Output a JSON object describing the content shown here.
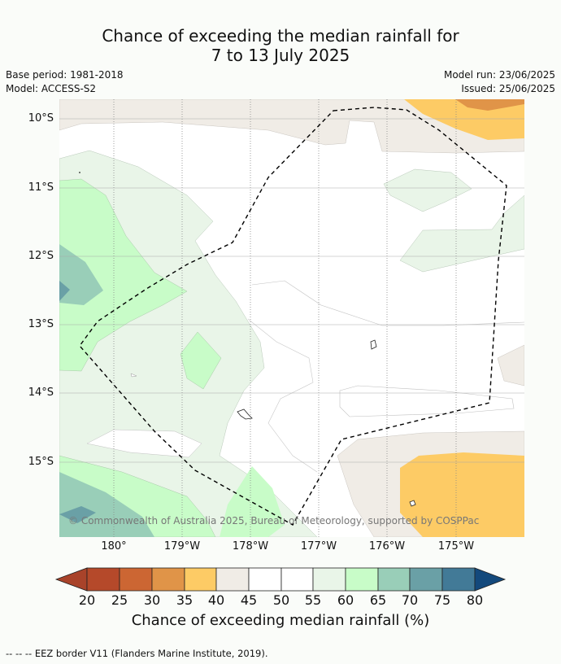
{
  "title": {
    "line1": "Chance of exceeding the median rainfall for",
    "line2": "7 to 13 July 2025"
  },
  "info": {
    "base_period": "Base period: 1981-2018",
    "model": "Model: ACCESS-S2",
    "model_run": "Model run: 23/06/2025",
    "issued": "Issued: 25/06/2025"
  },
  "map": {
    "lat_labels": [
      "10°S",
      "11°S",
      "12°S",
      "13°S",
      "14°S",
      "15°S"
    ],
    "lon_labels": [
      "180°",
      "179°W",
      "178°W",
      "177°W",
      "176°W",
      "175°W"
    ],
    "copyright": "© Commonwealth of Australia 2025, Bureau of Meteorology, supported by COSPPac"
  },
  "colorbar": {
    "ticks": [
      "20",
      "25",
      "30",
      "35",
      "40",
      "45",
      "50",
      "55",
      "60",
      "65",
      "70",
      "75",
      "80"
    ],
    "colors": [
      "#a9432a",
      "#b5492a",
      "#cc6633",
      "#e09448",
      "#fdcb65",
      "#f0ece6",
      "#ffffff",
      "#ffffff",
      "#e9f5e8",
      "#c8fcc8",
      "#99ceb8",
      "#6aa0a6",
      "#427a97",
      "#13497c"
    ],
    "label": "Chance of exceeding median rainfall (%)"
  },
  "legend": {
    "eez": "--  --  -- EEZ border V11 (Flanders Marine Institute, 2019)."
  }
}
